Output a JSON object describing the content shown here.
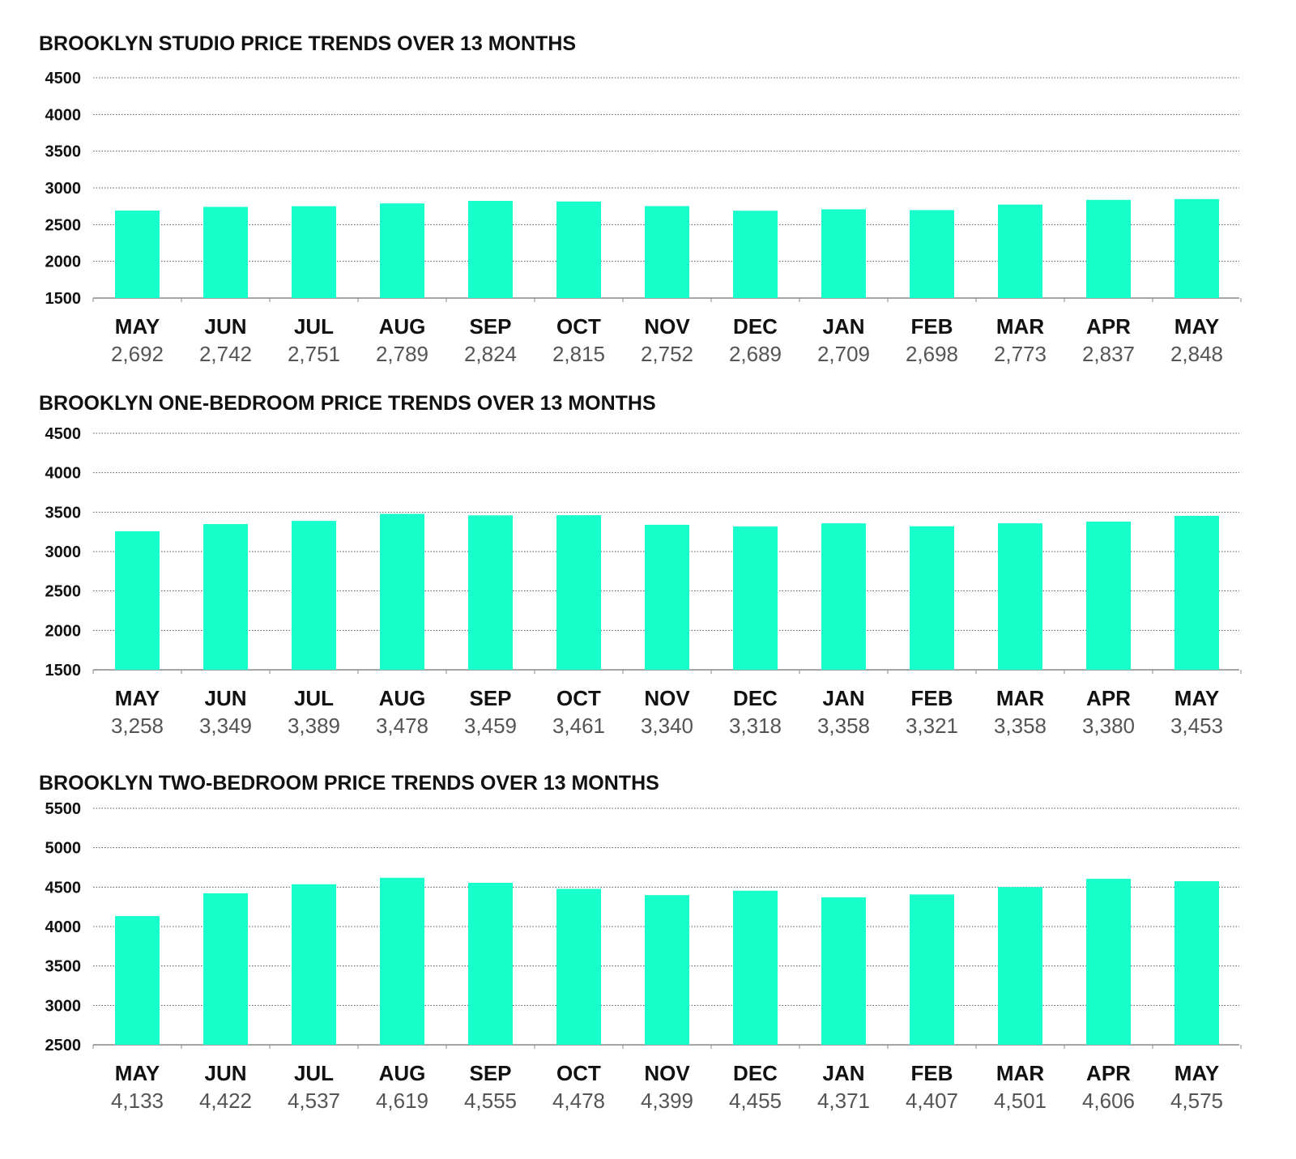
{
  "colors": {
    "bar": "#19FFCC",
    "grid": "#555555",
    "axis": "#888888",
    "text": "#111111",
    "value_text": "#555555"
  },
  "chart_data": [
    {
      "type": "bar",
      "title": "BROOKLYN STUDIO PRICE TRENDS OVER 13 MONTHS",
      "categories": [
        "MAY",
        "JUN",
        "JUL",
        "AUG",
        "SEP",
        "OCT",
        "NOV",
        "DEC",
        "JAN",
        "FEB",
        "MAR",
        "APR",
        "MAY"
      ],
      "values": [
        2692,
        2742,
        2751,
        2789,
        2824,
        2815,
        2752,
        2689,
        2709,
        2698,
        2773,
        2837,
        2848
      ],
      "value_labels": [
        "2,692",
        "2,742",
        "2,751",
        "2,789",
        "2,824",
        "2,815",
        "2,752",
        "2,689",
        "2,709",
        "2,698",
        "2,773",
        "2,837",
        "2,848"
      ],
      "ylim": [
        1500,
        4500
      ],
      "yticks": [
        "1500",
        "2000",
        "2500",
        "3000",
        "3500",
        "4000",
        "4500"
      ],
      "grid": true
    },
    {
      "type": "bar",
      "title": "BROOKLYN ONE-BEDROOM PRICE TRENDS OVER 13 MONTHS",
      "categories": [
        "MAY",
        "JUN",
        "JUL",
        "AUG",
        "SEP",
        "OCT",
        "NOV",
        "DEC",
        "JAN",
        "FEB",
        "MAR",
        "APR",
        "MAY"
      ],
      "values": [
        3258,
        3349,
        3389,
        3478,
        3459,
        3461,
        3340,
        3318,
        3358,
        3321,
        3358,
        3380,
        3453
      ],
      "value_labels": [
        "3,258",
        "3,349",
        "3,389",
        "3,478",
        "3,459",
        "3,461",
        "3,340",
        "3,318",
        "3,358",
        "3,321",
        "3,358",
        "3,380",
        "3,453"
      ],
      "ylim": [
        1500,
        4500
      ],
      "yticks": [
        "1500",
        "2000",
        "2500",
        "3000",
        "3500",
        "4000",
        "4500"
      ],
      "grid": true
    },
    {
      "type": "bar",
      "title": "BROOKLYN TWO-BEDROOM PRICE TRENDS OVER 13 MONTHS",
      "categories": [
        "MAY",
        "JUN",
        "JUL",
        "AUG",
        "SEP",
        "OCT",
        "NOV",
        "DEC",
        "JAN",
        "FEB",
        "MAR",
        "APR",
        "MAY"
      ],
      "values": [
        4133,
        4422,
        4537,
        4619,
        4555,
        4478,
        4399,
        4455,
        4371,
        4407,
        4501,
        4606,
        4575
      ],
      "value_labels": [
        "4,133",
        "4,422",
        "4,537",
        "4,619",
        "4,555",
        "4,478",
        "4,399",
        "4,455",
        "4,371",
        "4,407",
        "4,501",
        "4,606",
        "4,575"
      ],
      "ylim": [
        2500,
        5500
      ],
      "yticks": [
        "2500",
        "3000",
        "3500",
        "4000",
        "4500",
        "5000",
        "5500"
      ],
      "grid": true
    }
  ]
}
